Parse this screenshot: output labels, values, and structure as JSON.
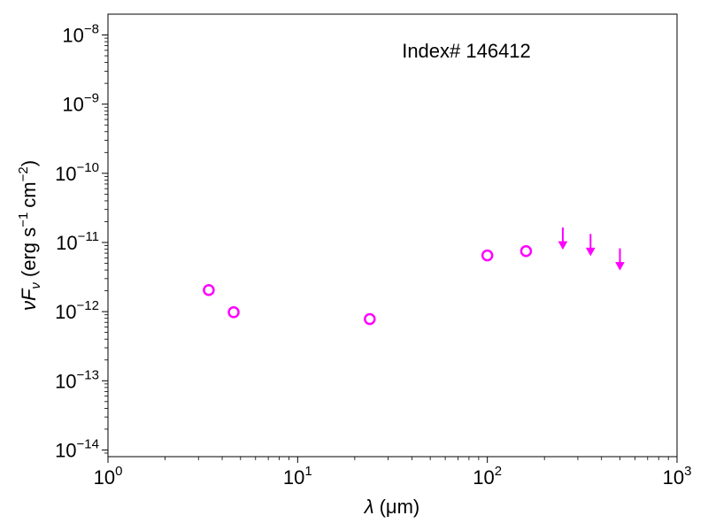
{
  "chart_data": {
    "type": "scatter",
    "annotation": "Index# 146412",
    "xlabel": {
      "symbol": "λ",
      "unit": "(μm)"
    },
    "ylabel": {
      "symbol": "ν",
      "symbol2": "F",
      "sub": "ν",
      "text": "(erg s",
      "exp1": "−1",
      "mid": "cm",
      "exp2": "−2",
      "close": ")"
    },
    "xscale": "log",
    "yscale": "log",
    "xlim": [
      1,
      1000
    ],
    "ylim": [
      8e-15,
      2e-08
    ],
    "xticks": [
      {
        "value": 1,
        "base": "10",
        "exp": "0"
      },
      {
        "value": 10,
        "base": "10",
        "exp": "1"
      },
      {
        "value": 100,
        "base": "10",
        "exp": "2"
      },
      {
        "value": 1000,
        "base": "10",
        "exp": "3"
      }
    ],
    "yticks": [
      {
        "value": 1e-14,
        "base": "10",
        "exp": "−14"
      },
      {
        "value": 1e-13,
        "base": "10",
        "exp": "−13"
      },
      {
        "value": 1e-12,
        "base": "10",
        "exp": "−12"
      },
      {
        "value": 1e-11,
        "base": "10",
        "exp": "−11"
      },
      {
        "value": 1e-10,
        "base": "10",
        "exp": "−10"
      },
      {
        "value": 1e-09,
        "base": "10",
        "exp": "−9"
      },
      {
        "value": 1e-08,
        "base": "10",
        "exp": "−8"
      }
    ],
    "color": "#ff00ff",
    "series": [
      {
        "marker": "open-circle",
        "x": [
          3.4,
          4.6,
          24,
          100,
          160
        ],
        "y": [
          2.05e-12,
          9.8e-13,
          7.8e-13,
          6.5e-12,
          7.5e-12
        ]
      },
      {
        "marker": "upper-limit-arrow",
        "x": [
          250,
          350,
          500
        ],
        "y": [
          1.3e-11,
          1.05e-11,
          6.5e-12
        ]
      }
    ],
    "grid": false,
    "legend": "none"
  }
}
